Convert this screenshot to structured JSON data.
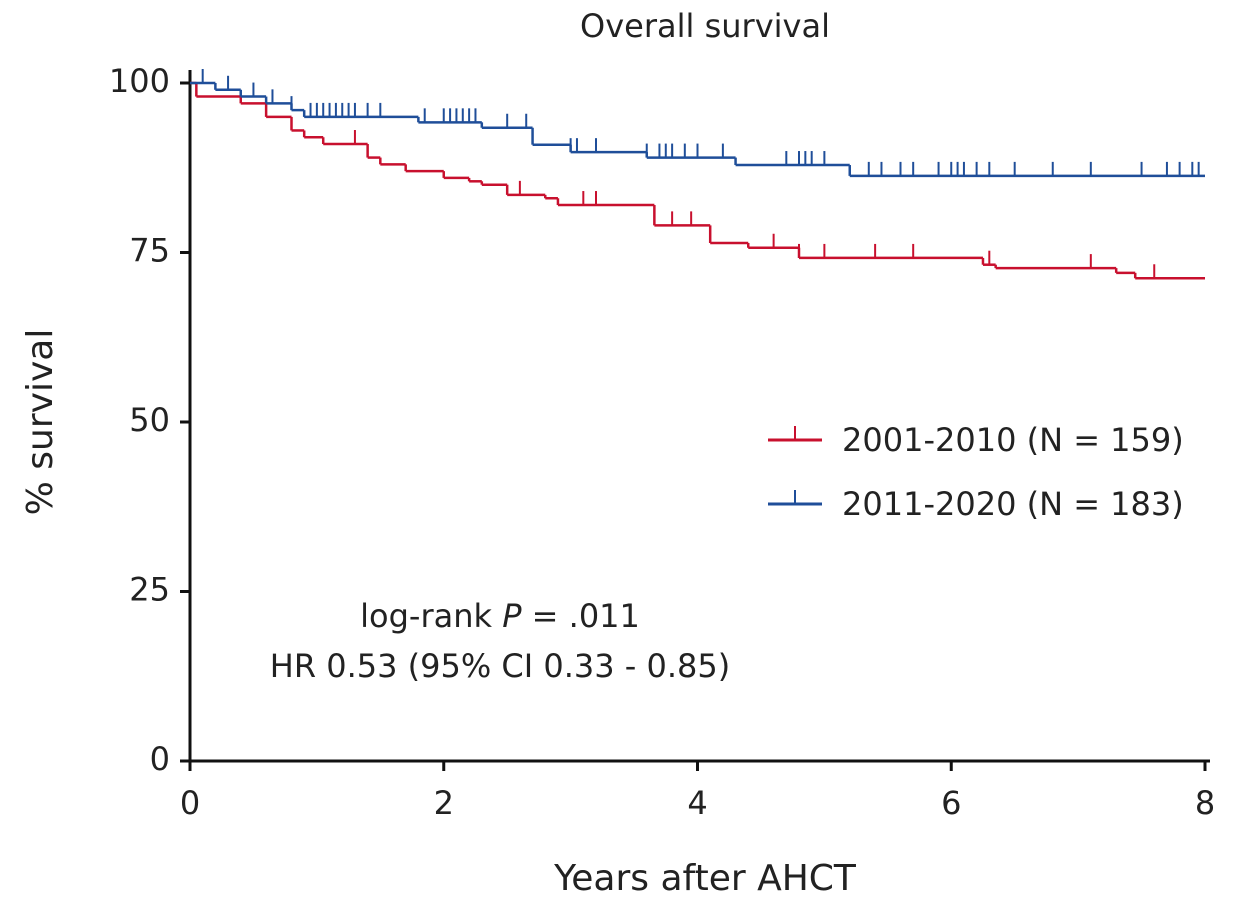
{
  "chart_data": {
    "type": "km",
    "title": "Overall survival",
    "x_label": "Years after AHCT",
    "y_label": "% survival",
    "xlim": [
      0,
      8
    ],
    "xticks": [
      0,
      2,
      4,
      6,
      8
    ],
    "ylim": [
      0,
      100
    ],
    "yticks": [
      0,
      25,
      50,
      75,
      100
    ],
    "legend": "right",
    "annotation_1": [
      "log-rank ",
      "P",
      " = .011"
    ],
    "annotation_2": "HR 0.53 (95% CI 0.33 - 0.85)",
    "series": [
      {
        "name": "2001-2010 (N = 159)",
        "color": "#c8102e",
        "x": [
          0,
          0.05,
          0.4,
          0.6,
          0.8,
          0.9,
          1.05,
          1.4,
          1.5,
          1.7,
          2.0,
          2.2,
          2.3,
          2.5,
          2.8,
          2.9,
          3.66,
          4.1,
          4.4,
          4.8,
          6.25,
          6.35,
          7.3,
          7.45,
          8
        ],
        "values": [
          100,
          98,
          97,
          95,
          93,
          92,
          91,
          89,
          88,
          87,
          86,
          85.5,
          85,
          83.5,
          83,
          82,
          79,
          76.4,
          75.7,
          74.2,
          73.2,
          72.7,
          72,
          71.2,
          71.2
        ],
        "censored": [
          1.3,
          2.6,
          3.1,
          3.2,
          3.8,
          3.95,
          4.6,
          4.8,
          5.0,
          5.4,
          5.7,
          6.3,
          7.1,
          7.6
        ]
      },
      {
        "name": "2011-2020 (N = 183)",
        "color": "#1f4e99",
        "x": [
          0,
          0.2,
          0.4,
          0.6,
          0.8,
          0.9,
          1.8,
          2.3,
          2.7,
          3.0,
          3.6,
          4.3,
          5.2,
          8
        ],
        "values": [
          100,
          99,
          98,
          97,
          96,
          95,
          94.2,
          93.4,
          90.9,
          89.8,
          89,
          87.9,
          86.3,
          86.3
        ],
        "censored": [
          0.1,
          0.3,
          0.5,
          0.65,
          0.8,
          0.95,
          1.0,
          1.05,
          1.1,
          1.15,
          1.2,
          1.25,
          1.3,
          1.4,
          1.5,
          1.85,
          2.0,
          2.05,
          2.1,
          2.15,
          2.2,
          2.25,
          2.5,
          2.65,
          3.0,
          3.05,
          3.2,
          3.6,
          3.7,
          3.75,
          3.8,
          3.9,
          4.0,
          4.2,
          4.7,
          4.8,
          4.85,
          4.9,
          5.0,
          5.35,
          5.45,
          5.6,
          5.7,
          5.9,
          6.0,
          6.05,
          6.1,
          6.2,
          6.3,
          6.5,
          6.8,
          7.1,
          7.5,
          7.7,
          7.8,
          7.9,
          7.95
        ]
      }
    ]
  }
}
